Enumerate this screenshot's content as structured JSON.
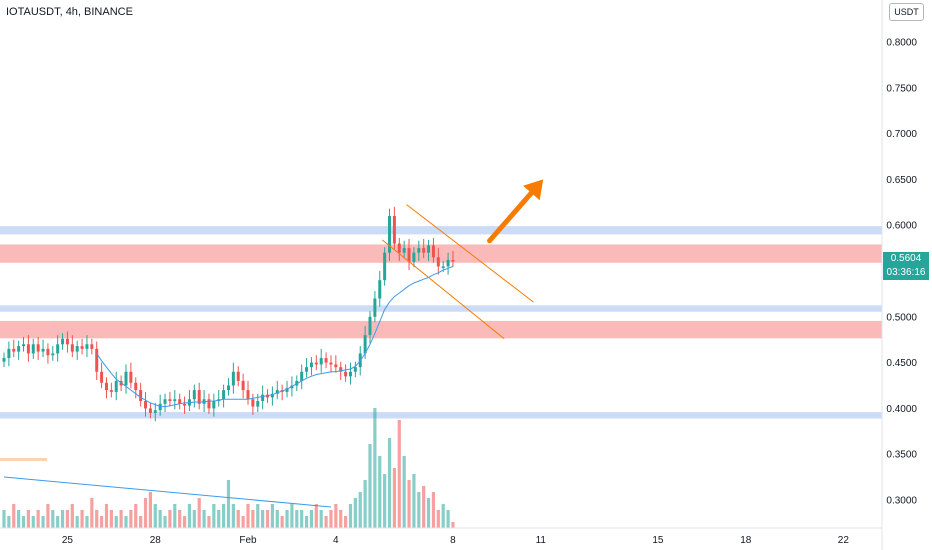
{
  "header": {
    "symbol_title": "IOTAUSDT, 4h, BINANCE",
    "currency": "USDT"
  },
  "price_readout": {
    "last_price": "0.5604",
    "countdown": "03:36:16"
  },
  "colors": {
    "up": "#26a69a",
    "down": "#ef5350",
    "zone_red": "#f9b3b3",
    "zone_blue": "#c6d8f5",
    "ma": "#3d9be9",
    "channel": "#f57c00",
    "arrow": "#f57c00",
    "vol_trend": "#3d9be9",
    "marker": "#fcd2b0"
  },
  "chart_data": {
    "type": "candlestick",
    "title": "IOTAUSDT, 4h, BINANCE",
    "y_axis": {
      "range": [
        0.268,
        0.848
      ],
      "ticks": [
        "0.8000",
        "0.7500",
        "0.7000",
        "0.6500",
        "0.6000",
        "0.5500",
        "0.5000",
        "0.4500",
        "0.4000",
        "0.3500",
        "0.3000"
      ],
      "tick_values": [
        0.8,
        0.75,
        0.7,
        0.65,
        0.6,
        0.55,
        0.5,
        0.45,
        0.4,
        0.35,
        0.3
      ]
    },
    "x_axis": {
      "labels": [
        "25",
        "28",
        "Feb",
        "4",
        "8",
        "11",
        "15",
        "18",
        "22"
      ],
      "label_bar_index": [
        13,
        31,
        50,
        68,
        92,
        110,
        134,
        152,
        172
      ]
    },
    "last_price": 0.5604,
    "zones": [
      {
        "type": "resistance",
        "color": "blue",
        "low": 0.59,
        "high": 0.599
      },
      {
        "type": "resistance",
        "color": "red",
        "low": 0.559,
        "high": 0.579
      },
      {
        "type": "support",
        "color": "blue",
        "low": 0.5055,
        "high": 0.5125
      },
      {
        "type": "support",
        "color": "red",
        "low": 0.4765,
        "high": 0.4955
      },
      {
        "type": "support",
        "color": "blue",
        "low": 0.389,
        "high": 0.396
      }
    ],
    "channel_lines": [
      {
        "from": [
          82.5,
          0.6225
        ],
        "to": [
          108.5,
          0.516
        ]
      },
      {
        "from": [
          77.5,
          0.584
        ],
        "to": [
          102.5,
          0.476
        ]
      }
    ],
    "arrow": {
      "from": [
        99.5,
        0.583
      ],
      "to": [
        110.5,
        0.65
      ]
    },
    "candles_close": [
      0.455,
      0.465,
      0.462,
      0.468,
      0.47,
      0.46,
      0.47,
      0.462,
      0.465,
      0.458,
      0.46,
      0.47,
      0.476,
      0.47,
      0.462,
      0.468,
      0.465,
      0.47,
      0.465,
      0.44,
      0.428,
      0.42,
      0.418,
      0.43,
      0.425,
      0.44,
      0.428,
      0.42,
      0.408,
      0.4,
      0.395,
      0.398,
      0.405,
      0.41,
      0.408,
      0.41,
      0.405,
      0.403,
      0.41,
      0.42,
      0.405,
      0.41,
      0.4,
      0.408,
      0.41,
      0.42,
      0.425,
      0.44,
      0.43,
      0.42,
      0.41,
      0.402,
      0.408,
      0.415,
      0.412,
      0.416,
      0.42,
      0.418,
      0.422,
      0.425,
      0.43,
      0.44,
      0.445,
      0.45,
      0.448,
      0.455,
      0.45,
      0.448,
      0.445,
      0.44,
      0.435,
      0.44,
      0.445,
      0.46,
      0.48,
      0.5,
      0.52,
      0.54,
      0.57,
      0.61,
      0.58,
      0.57,
      0.575,
      0.56,
      0.57,
      0.575,
      0.57,
      0.578,
      0.565,
      0.555,
      0.555,
      0.562,
      0.5604
    ],
    "ma": {
      "name": "",
      "from_index": 19,
      "values": [
        0.46,
        0.452,
        0.445,
        0.438,
        0.432,
        0.428,
        0.424,
        0.42,
        0.416,
        0.412,
        0.409,
        0.406,
        0.404,
        0.402,
        0.402,
        0.403,
        0.404,
        0.405,
        0.406,
        0.406,
        0.407,
        0.407,
        0.407,
        0.408,
        0.408,
        0.409,
        0.41,
        0.41,
        0.41,
        0.41,
        0.41,
        0.41,
        0.411,
        0.412,
        0.413,
        0.414,
        0.415,
        0.417,
        0.419,
        0.421,
        0.424,
        0.427,
        0.43,
        0.433,
        0.435,
        0.437,
        0.438,
        0.439,
        0.44,
        0.44,
        0.441,
        0.442,
        0.443,
        0.446,
        0.452,
        0.46,
        0.47,
        0.482,
        0.495,
        0.508,
        0.516,
        0.522,
        0.526,
        0.53,
        0.534,
        0.537,
        0.539,
        0.541,
        0.543,
        0.546,
        0.548,
        0.551,
        0.553,
        0.555
      ]
    },
    "volume": [
      3,
      2,
      4,
      3,
      2,
      3,
      2,
      3,
      2,
      4,
      3,
      2,
      3,
      3,
      4,
      2,
      3,
      2,
      5,
      3,
      2,
      4,
      3,
      2,
      3,
      2,
      3,
      4,
      2,
      5,
      6,
      4,
      3,
      2,
      3,
      4,
      3,
      2,
      4,
      3,
      5,
      3,
      2,
      4,
      3,
      4,
      8,
      4,
      3,
      2,
      4,
      3,
      4,
      3,
      3,
      4,
      3,
      2,
      3,
      4,
      3,
      3,
      2,
      3,
      4,
      3,
      2,
      3,
      4,
      3,
      2,
      4,
      5,
      6,
      8,
      14,
      20,
      12,
      9,
      15,
      10,
      18,
      12,
      8,
      9,
      6,
      7,
      5,
      6,
      3,
      4,
      3,
      1
    ],
    "volume_trend": {
      "from": [
        0,
        8.5
      ],
      "to": [
        67,
        3.5
      ]
    },
    "marker_segment": {
      "from_index": 0,
      "to_index": 8
    }
  }
}
